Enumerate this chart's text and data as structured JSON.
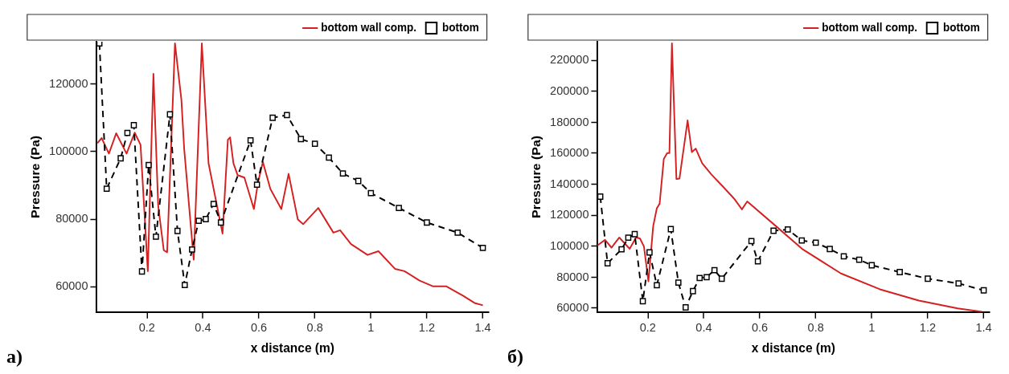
{
  "chart_data": [
    {
      "type": "line",
      "xlabel": "x distance (m)",
      "ylabel": "Pressure (Pa)",
      "annotations": [
        "a)"
      ],
      "legend": "top right",
      "grid": false,
      "xlim": [
        0.02,
        1.42
      ],
      "xticks": [
        0.2,
        0.4,
        0.6,
        0.8,
        1,
        1.2,
        1.4
      ],
      "ylim": [
        52500,
        132500
      ],
      "yticks": [
        60000,
        80000,
        100000,
        120000
      ],
      "series": [
        {
          "name": "bottom wall comp.",
          "color": "#d42020",
          "line_style": "solid",
          "marker": "none",
          "x": [
            0.023,
            0.038,
            0.064,
            0.09,
            0.127,
            0.156,
            0.177,
            0.203,
            0.223,
            0.24,
            0.26,
            0.272,
            0.3,
            0.323,
            0.333,
            0.367,
            0.396,
            0.42,
            0.47,
            0.489,
            0.497,
            0.509,
            0.524,
            0.548,
            0.582,
            0.597,
            0.614,
            0.641,
            0.68,
            0.706,
            0.739,
            0.758,
            0.812,
            0.866,
            0.89,
            0.929,
            0.988,
            1.027,
            1.086,
            1.12,
            1.174,
            1.223,
            1.27,
            1.33,
            1.37,
            1.4
          ],
          "values": [
            102500,
            104000,
            99400,
            105400,
            99400,
            105600,
            102000,
            64600,
            123000,
            84000,
            70800,
            70200,
            132000,
            115300,
            100700,
            68000,
            132000,
            96500,
            75700,
            103500,
            104200,
            96500,
            93000,
            92300,
            83000,
            91000,
            96900,
            88900,
            83000,
            93400,
            79900,
            78500,
            83300,
            76000,
            76700,
            72600,
            69400,
            70500,
            65300,
            64600,
            61800,
            60100,
            60100,
            57300,
            55200,
            54500
          ]
        },
        {
          "name": "bottom",
          "color": "#000000",
          "line_style": "dashed",
          "marker": "square",
          "x": [
            0.03,
            0.056,
            0.106,
            0.13,
            0.153,
            0.182,
            0.206,
            0.232,
            0.282,
            0.309,
            0.335,
            0.361,
            0.385,
            0.41,
            0.438,
            0.464,
            0.57,
            0.593,
            0.649,
            0.7,
            0.75,
            0.8,
            0.85,
            0.9,
            0.955,
            1.0,
            1.1,
            1.2,
            1.31,
            1.4
          ],
          "values": [
            132000,
            89000,
            98000,
            105500,
            107800,
            64500,
            96000,
            74800,
            111000,
            76500,
            60500,
            71000,
            79500,
            80000,
            84500,
            79000,
            103300,
            90200,
            110000,
            110800,
            103700,
            102300,
            98200,
            93500,
            91300,
            87700,
            83300,
            79000,
            76000,
            71500
          ]
        }
      ]
    },
    {
      "type": "line",
      "xlabel": "x distance (m)",
      "ylabel": "Pressure (Pa)",
      "annotations": [
        "б)"
      ],
      "legend": "top right",
      "grid": false,
      "xlim": [
        0.02,
        1.42
      ],
      "xticks": [
        0.2,
        0.4,
        0.6,
        0.8,
        1,
        1.2,
        1.4
      ],
      "ylim": [
        57500,
        232000
      ],
      "yticks": [
        60000,
        80000,
        100000,
        120000,
        140000,
        160000,
        180000,
        200000,
        220000
      ],
      "series": [
        {
          "name": "bottom wall comp.",
          "color": "#d42020",
          "line_style": "solid",
          "marker": "none",
          "x": [
            0.02,
            0.047,
            0.07,
            0.098,
            0.135,
            0.158,
            0.172,
            0.186,
            0.202,
            0.219,
            0.232,
            0.242,
            0.257,
            0.269,
            0.277,
            0.286,
            0.302,
            0.313,
            0.342,
            0.357,
            0.371,
            0.394,
            0.427,
            0.473,
            0.51,
            0.536,
            0.555,
            0.658,
            0.751,
            0.89,
            1.029,
            1.168,
            1.307,
            1.394
          ],
          "values": [
            100500,
            104100,
            99100,
            105600,
            98300,
            105700,
            104900,
            99800,
            77300,
            112900,
            124500,
            127400,
            156400,
            160100,
            160100,
            231000,
            143400,
            143700,
            181200,
            160800,
            163000,
            153600,
            146300,
            137600,
            130300,
            123800,
            128900,
            112900,
            98300,
            82400,
            72200,
            64900,
            59900,
            57700
          ]
        },
        {
          "name": "bottom",
          "color": "#000000",
          "line_style": "dashed",
          "marker": "square",
          "x": [
            0.03,
            0.056,
            0.106,
            0.13,
            0.153,
            0.182,
            0.206,
            0.232,
            0.282,
            0.309,
            0.335,
            0.361,
            0.385,
            0.41,
            0.438,
            0.464,
            0.57,
            0.593,
            0.649,
            0.7,
            0.75,
            0.8,
            0.85,
            0.9,
            0.955,
            1.0,
            1.1,
            1.2,
            1.31,
            1.4
          ],
          "values": [
            132000,
            89000,
            98000,
            105500,
            107800,
            64500,
            96000,
            74800,
            111000,
            76500,
            60500,
            71000,
            79500,
            80000,
            84500,
            79000,
            103300,
            90200,
            110000,
            110800,
            103700,
            102300,
            98200,
            93500,
            91300,
            87700,
            83300,
            79000,
            76000,
            71500
          ]
        }
      ]
    }
  ]
}
